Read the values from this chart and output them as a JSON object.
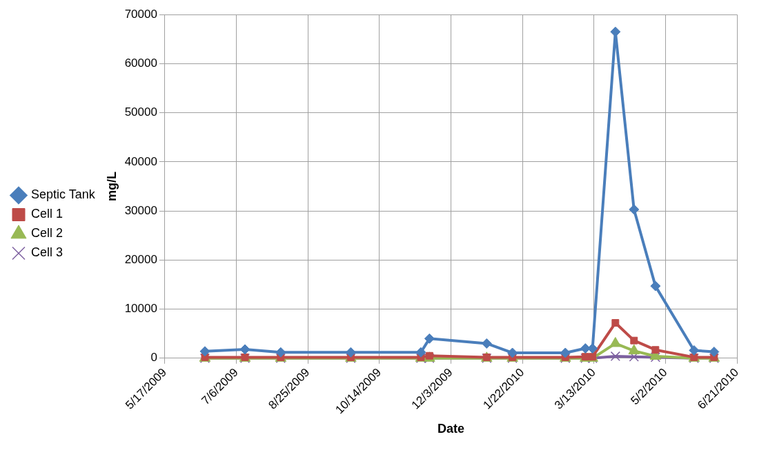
{
  "chart_data": {
    "type": "line",
    "xlabel": "Date",
    "ylabel": "mg/L",
    "x": [
      "2009-06-14",
      "2009-07-12",
      "2009-08-06",
      "2009-09-24",
      "2009-11-12",
      "2009-11-18",
      "2009-12-28",
      "2010-01-15",
      "2010-02-21",
      "2010-03-07",
      "2010-03-12",
      "2010-03-28",
      "2010-04-10",
      "2010-04-25",
      "2010-05-22",
      "2010-06-05"
    ],
    "series": [
      {
        "name": "Septic Tank",
        "color": "#4a7ebb",
        "marker": "diamond",
        "values": [
          1400,
          1800,
          1200,
          1200,
          1200,
          4000,
          3000,
          1100,
          1100,
          2000,
          2000,
          66500,
          30300,
          14700,
          1600,
          1300
        ]
      },
      {
        "name": "Cell 1",
        "color": "#be4b48",
        "marker": "square",
        "values": [
          200,
          200,
          200,
          200,
          200,
          500,
          200,
          200,
          200,
          300,
          300,
          7200,
          3600,
          1700,
          200,
          200
        ]
      },
      {
        "name": "Cell 2",
        "color": "#98b954",
        "marker": "triangle",
        "values": [
          0,
          0,
          0,
          0,
          0,
          0,
          0,
          0,
          0,
          0,
          0,
          3000,
          1500,
          400,
          0,
          0
        ]
      },
      {
        "name": "Cell 3",
        "color": "#7d60a0",
        "marker": "cross",
        "values": [
          0,
          0,
          0,
          0,
          0,
          0,
          0,
          0,
          0,
          0,
          0,
          400,
          300,
          200,
          0,
          0
        ]
      }
    ],
    "xlim": [
      "2009-05-17",
      "2010-06-21"
    ],
    "xticks": [
      {
        "value": "2009-05-17",
        "label": "5/17/2009"
      },
      {
        "value": "2009-07-06",
        "label": "7/6/2009"
      },
      {
        "value": "2009-08-25",
        "label": "8/25/2009"
      },
      {
        "value": "2009-10-14",
        "label": "10/14/2009"
      },
      {
        "value": "2009-12-03",
        "label": "12/3/2009"
      },
      {
        "value": "2010-01-22",
        "label": "1/22/2010"
      },
      {
        "value": "2010-03-13",
        "label": "3/13/2010"
      },
      {
        "value": "2010-05-02",
        "label": "5/2/2010"
      },
      {
        "value": "2010-06-21",
        "label": "6/21/2010"
      }
    ],
    "ylim": [
      0,
      70000
    ],
    "yticks": [
      0,
      10000,
      20000,
      30000,
      40000,
      50000,
      60000,
      70000
    ],
    "grid": true,
    "legend": "left",
    "line_style": "solid"
  }
}
